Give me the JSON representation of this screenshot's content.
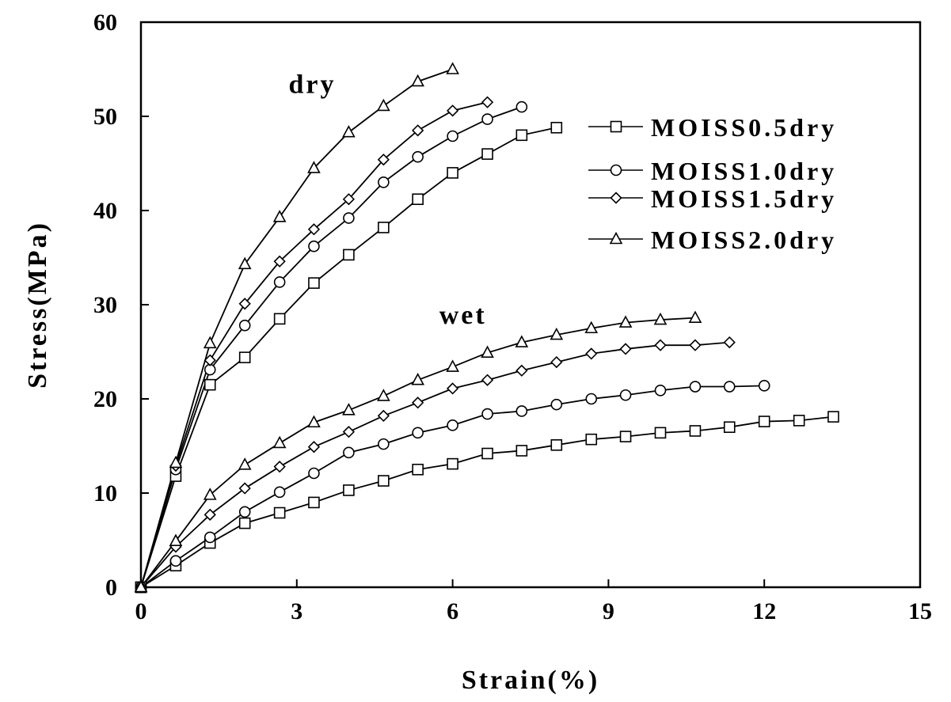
{
  "chart_data": {
    "type": "line",
    "title": "",
    "xlabel": "Strain(%)",
    "ylabel": "Stress(MPa)",
    "xlim": [
      0,
      15
    ],
    "ylim": [
      0,
      60
    ],
    "xticks": [
      "0",
      "3",
      "6",
      "9",
      "12",
      "15"
    ],
    "yticks": [
      "0",
      "10",
      "20",
      "30",
      "40",
      "50",
      "60"
    ],
    "grid": false,
    "legend_position": "top-right",
    "annotations": [
      {
        "text": "dry",
        "x": 3.3,
        "y": 52.5
      },
      {
        "text": "wet",
        "x": 6.2,
        "y": 28.0
      }
    ],
    "legend": [
      {
        "label": "MOISS0.5dry",
        "marker": "square"
      },
      {
        "label": "MOISS1.0dry",
        "marker": "circle"
      },
      {
        "label": "MOISS1.5dry",
        "marker": "diamond"
      },
      {
        "label": "MOISS2.0dry",
        "marker": "triangle"
      }
    ],
    "series": [
      {
        "group": "dry",
        "marker": "square",
        "x": [
          0,
          0.67,
          1.33,
          2.0,
          2.67,
          3.33,
          4.0,
          4.67,
          5.33,
          6.0,
          6.67,
          7.33,
          8.0
        ],
        "y": [
          0,
          11.8,
          21.5,
          24.4,
          28.5,
          32.3,
          35.3,
          38.2,
          41.2,
          44.0,
          46.0,
          48.0,
          48.8
        ]
      },
      {
        "group": "dry",
        "marker": "circle",
        "x": [
          0,
          0.67,
          1.33,
          2.0,
          2.67,
          3.33,
          4.0,
          4.67,
          5.33,
          6.0,
          6.67,
          7.33
        ],
        "y": [
          0,
          12.5,
          23.1,
          27.8,
          32.4,
          36.2,
          39.2,
          43.0,
          45.7,
          47.9,
          49.7,
          51.0
        ]
      },
      {
        "group": "dry",
        "marker": "diamond",
        "x": [
          0,
          0.67,
          1.33,
          2.0,
          2.67,
          3.33,
          4.0,
          4.67,
          5.33,
          6.0,
          6.67
        ],
        "y": [
          0,
          12.9,
          24.1,
          30.1,
          34.6,
          38.0,
          41.2,
          45.4,
          48.5,
          50.6,
          51.5
        ]
      },
      {
        "group": "dry",
        "marker": "triangle",
        "x": [
          0,
          0.67,
          1.33,
          2.0,
          2.67,
          3.33,
          4.0,
          4.67,
          5.33,
          6.0
        ],
        "y": [
          0,
          13.2,
          25.9,
          34.3,
          39.3,
          44.5,
          48.3,
          51.1,
          53.7,
          55.0
        ]
      },
      {
        "group": "wet",
        "marker": "square",
        "x": [
          0,
          0.67,
          1.33,
          2.0,
          2.67,
          3.33,
          4.0,
          4.67,
          5.33,
          6.0,
          6.67,
          7.33,
          8.0,
          8.67,
          9.33,
          10.0,
          10.67,
          11.33,
          12.0,
          12.67,
          13.33
        ],
        "y": [
          0,
          2.3,
          4.7,
          6.8,
          7.9,
          9.0,
          10.3,
          11.3,
          12.5,
          13.1,
          14.2,
          14.5,
          15.1,
          15.7,
          16.0,
          16.4,
          16.6,
          17.0,
          17.6,
          17.7,
          18.1
        ]
      },
      {
        "group": "wet",
        "marker": "circle",
        "x": [
          0,
          0.67,
          1.33,
          2.0,
          2.67,
          3.33,
          4.0,
          4.67,
          5.33,
          6.0,
          6.67,
          7.33,
          8.0,
          8.67,
          9.33,
          10.0,
          10.67,
          11.33,
          12.0
        ],
        "y": [
          0,
          2.8,
          5.3,
          8.0,
          10.1,
          12.1,
          14.3,
          15.2,
          16.4,
          17.2,
          18.4,
          18.7,
          19.4,
          20.0,
          20.4,
          20.9,
          21.3,
          21.3,
          21.4
        ]
      },
      {
        "group": "wet",
        "marker": "diamond",
        "x": [
          0,
          0.67,
          1.33,
          2.0,
          2.67,
          3.33,
          4.0,
          4.67,
          5.33,
          6.0,
          6.67,
          7.33,
          8.0,
          8.67,
          9.33,
          10.0,
          10.67,
          11.33
        ],
        "y": [
          0,
          4.3,
          7.7,
          10.5,
          12.8,
          14.9,
          16.5,
          18.2,
          19.6,
          21.1,
          22.0,
          23.0,
          23.9,
          24.8,
          25.3,
          25.7,
          25.7,
          26.0
        ]
      },
      {
        "group": "wet",
        "marker": "triangle",
        "x": [
          0,
          0.67,
          1.33,
          2.0,
          2.67,
          3.33,
          4.0,
          4.67,
          5.33,
          6.0,
          6.67,
          7.33,
          8.0,
          8.67,
          9.33,
          10.0,
          10.67
        ],
        "y": [
          0,
          4.9,
          9.8,
          13.0,
          15.3,
          17.5,
          18.8,
          20.3,
          22.0,
          23.4,
          24.9,
          26.0,
          26.8,
          27.5,
          28.1,
          28.4,
          28.6
        ]
      }
    ]
  }
}
